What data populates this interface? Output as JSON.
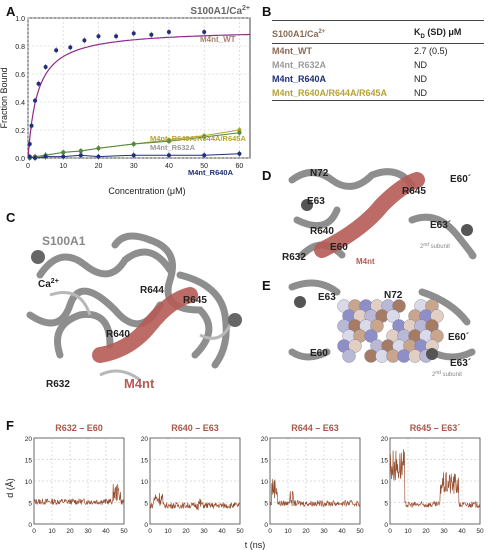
{
  "panels": {
    "a": "A",
    "b": "B",
    "c": "C",
    "d": "D",
    "e": "E",
    "f": "F"
  },
  "chart_a": {
    "title": "S100A1/Ca",
    "title_sup": "2+",
    "ylabel": "Fraction Bound",
    "xlabel": "Concentration (μM)",
    "series_labels": {
      "wt": "M4nt_WT",
      "triple": "M4nt_R640A/R644A/R645A",
      "r632a": "M4nt_R632A",
      "r640a": "M4nt_R640A"
    }
  },
  "chart_data": {
    "type": "scatter",
    "title": "S100A1/Ca2+",
    "xlabel": "Concentration (μM)",
    "ylabel": "Fraction Bound",
    "xlim": [
      0,
      63
    ],
    "ylim": [
      0,
      1.0
    ],
    "x_ticks": [
      0,
      10,
      20,
      30,
      40,
      50,
      60
    ],
    "y_ticks": [
      0.0,
      0.2,
      0.4,
      0.6,
      0.8,
      1.0
    ],
    "series": [
      {
        "name": "M4nt_WT",
        "color": "#8c2b8c",
        "x": [
          0.5,
          1,
          2,
          3,
          5,
          8,
          12,
          16,
          20,
          25,
          30,
          35,
          40,
          50
        ],
        "y": [
          0.1,
          0.23,
          0.41,
          0.53,
          0.65,
          0.77,
          0.79,
          0.84,
          0.87,
          0.87,
          0.89,
          0.88,
          0.9,
          0.9
        ]
      },
      {
        "name": "M4nt_R640A/R644A/R645A",
        "color": "#b7a234",
        "x": [
          0.5,
          2,
          5,
          10,
          15,
          20,
          30,
          40,
          50,
          60
        ],
        "y": [
          0.0,
          0.01,
          0.02,
          0.04,
          0.05,
          0.07,
          0.1,
          0.13,
          0.16,
          0.2
        ]
      },
      {
        "name": "M4nt_R632A",
        "color": "#4d8a3d",
        "x": [
          0.5,
          2,
          5,
          10,
          15,
          20,
          30,
          40,
          50,
          60
        ],
        "y": [
          0.0,
          0.01,
          0.02,
          0.04,
          0.05,
          0.07,
          0.1,
          0.12,
          0.15,
          0.18
        ]
      },
      {
        "name": "M4nt_R640A",
        "color": "#1f2f7a",
        "x": [
          0.5,
          2,
          5,
          10,
          15,
          20,
          30,
          40,
          50,
          60
        ],
        "y": [
          0.01,
          0.0,
          0.01,
          0.01,
          0.02,
          0.01,
          0.02,
          0.02,
          0.02,
          0.03
        ]
      }
    ]
  },
  "table_b": {
    "head_left": "S100A1/Ca",
    "head_left_sup": "2+",
    "head_right": "K",
    "head_right_sub": "D",
    "head_right_rest": " (SD) μM",
    "rows": [
      {
        "name": "M4nt_WT",
        "value": "2.7 (0.5)",
        "color": "#8a6a55"
      },
      {
        "name": "M4nt_R632A",
        "value": "ND",
        "color": "#9a9a9a"
      },
      {
        "name": "M4nt_R640A",
        "value": "ND",
        "color": "#1f2f7a"
      },
      {
        "name": "M4nt_R640A/R644A/R645A",
        "value": "ND",
        "color": "#b7a234"
      }
    ]
  },
  "panel_c": {
    "s100a1": "S100A1",
    "ca": "Ca",
    "ca_sup": "2+",
    "r632": "R632",
    "r640": "R640",
    "r644": "R644",
    "r645": "R645",
    "m4nt": "M4nt"
  },
  "panel_d": {
    "n72": "N72",
    "r645": "R645",
    "e60p": "E60´",
    "e63": "E63",
    "r640": "R640",
    "e60": "E60",
    "e63p": "E63´",
    "r632": "R632",
    "m4nt": "M4nt",
    "subunit": "2",
    "subunit_sup": "nd",
    "subunit_rest": " subunit"
  },
  "panel_e": {
    "e63": "E63",
    "n72": "N72",
    "e60p": "E60´",
    "e63p": "E63´",
    "e60": "E60",
    "subunit": "2",
    "subunit_sup": "nd",
    "subunit_rest": " subunit"
  },
  "panel_f": {
    "ylabel": "d (Å)",
    "xlabel": "t (ns)",
    "titles": [
      "R632 – E60",
      "R640 – E63",
      "R644 – E63",
      "R645 – E63´"
    ],
    "y_ticks": [
      "0",
      "5",
      "10",
      "15",
      "20"
    ],
    "x_ticks": [
      "0",
      "10",
      "20",
      "30",
      "40",
      "50"
    ]
  }
}
